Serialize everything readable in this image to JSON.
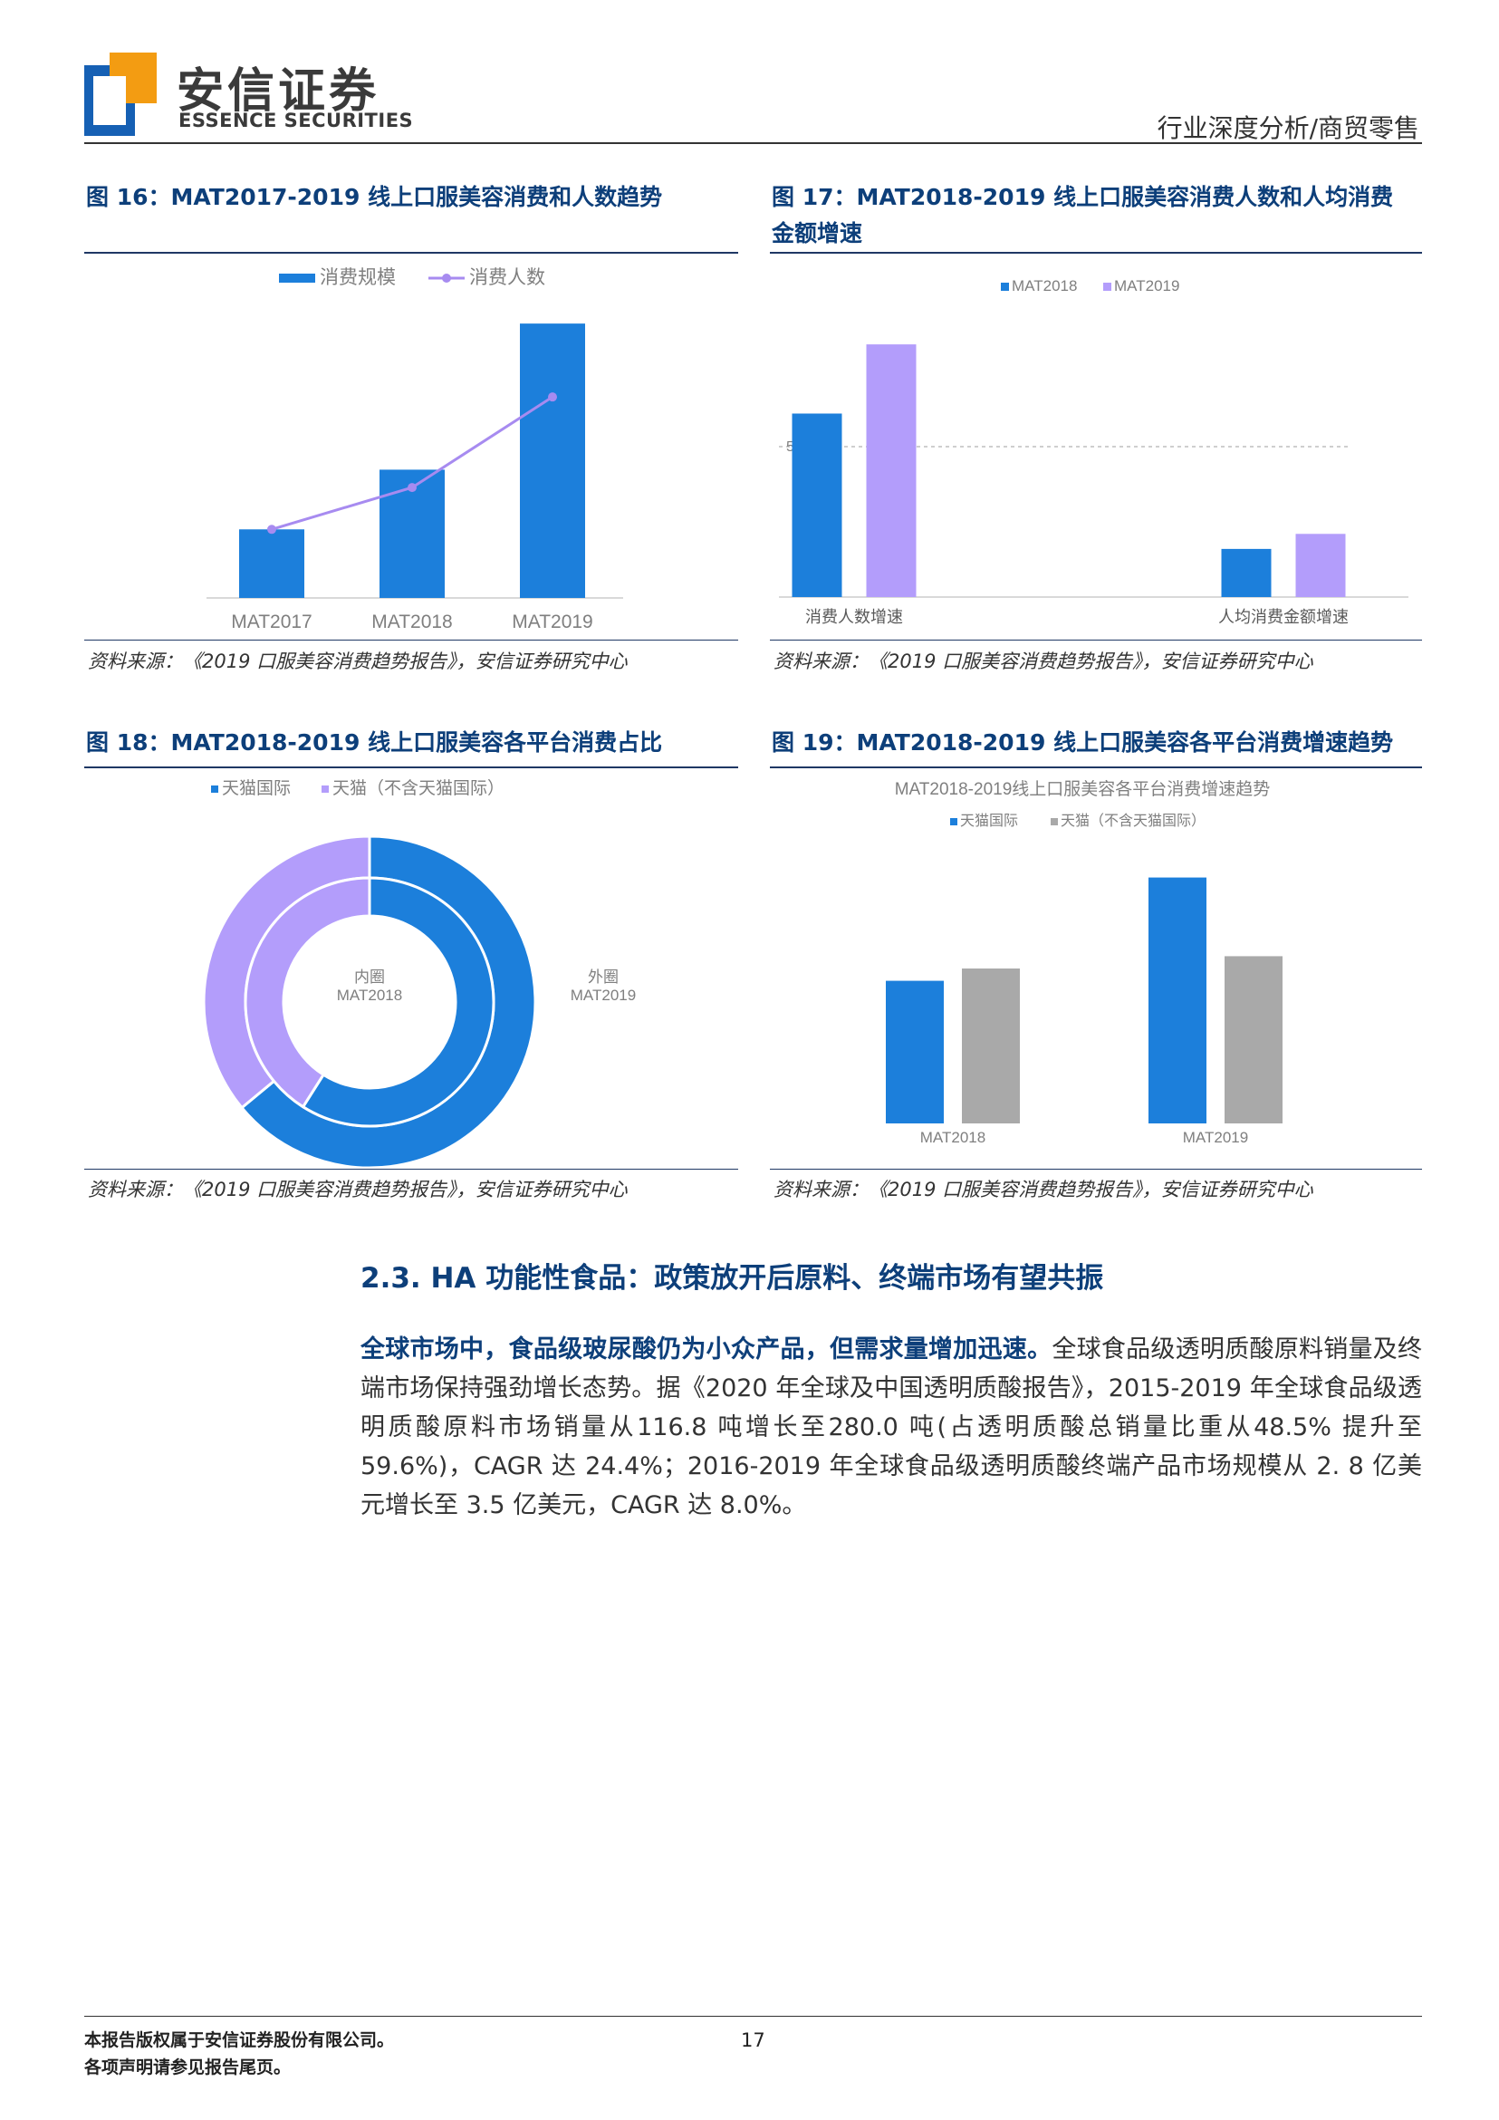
{
  "header": {
    "brand_cn": "安信证券",
    "brand_en": "ESSENCE SECURITIES",
    "category": "行业深度分析/商贸零售"
  },
  "figures": [
    {
      "title": "图 16：MAT2017-2019 线上口服美容消费和人数趋势",
      "source": "资料来源：《2019 口服美容消费趋势报告》，安信证券研究中心"
    },
    {
      "title_line1": "图 17：MAT2018-2019 线上口服美容消费人数和人均消费",
      "title_line2": "金额增速",
      "source": "资料来源：《2019 口服美容消费趋势报告》，安信证券研究中心"
    },
    {
      "title": "图 18：MAT2018-2019 线上口服美容各平台消费占比",
      "source": "资料来源：《2019 口服美容消费趋势报告》，安信证券研究中心"
    },
    {
      "title": "图 19：MAT2018-2019 线上口服美容各平台消费增速趋势",
      "source": "资料来源：《2019 口服美容消费趋势报告》，安信证券研究中心"
    }
  ],
  "chart_data": [
    {
      "type": "bar",
      "categories": [
        "MAT2017",
        "MAT2018",
        "MAT2019"
      ],
      "series": [
        {
          "name": "消费规模",
          "kind": "bar",
          "values": [
            1.0,
            1.87,
            4.0
          ],
          "color": "#1c7fdb"
        },
        {
          "name": "消费人数",
          "kind": "line",
          "values": [
            1.0,
            1.61,
            2.93
          ],
          "color": "#a78bf0"
        }
      ],
      "ylim": [
        0,
        4.2
      ],
      "grid": false,
      "legend": "top"
    },
    {
      "type": "bar",
      "categories": [
        "消费人数增速",
        "人均消费金额增速"
      ],
      "series": [
        {
          "name": "MAT2018",
          "values": [
            61,
            16
          ],
          "color": "#1c7fdb"
        },
        {
          "name": "MAT2019",
          "values": [
            84,
            21
          ],
          "color": "#b39dfb"
        }
      ],
      "ylim": [
        0,
        100
      ],
      "reference_line": {
        "value": 50,
        "label": "50%"
      },
      "legend": "top"
    },
    {
      "type": "pie",
      "subtype": "donut",
      "legend_entries": [
        "天猫国际",
        "天猫（不含天猫国际）"
      ],
      "colors": [
        "#1c7fdb",
        "#b39dfb"
      ],
      "inner_ring": {
        "label_top": "内圈",
        "label_bottom": "MAT2018",
        "values": [
          59,
          41
        ]
      },
      "outer_ring": {
        "label_top": "外圈",
        "label_bottom": "MAT2019",
        "values": [
          64,
          36
        ]
      }
    },
    {
      "type": "bar",
      "title": "MAT2018-2019线上口服美容各平台消费增速趋势",
      "categories": [
        "MAT2018",
        "MAT2019"
      ],
      "series": [
        {
          "name": "天猫国际",
          "values": [
            58,
            100
          ],
          "color": "#1c7fdb"
        },
        {
          "name": "天猫（不含天猫国际）",
          "values": [
            63,
            68
          ],
          "color": "#a9a9a9"
        }
      ],
      "ylim": [
        0,
        105
      ],
      "legend": "top"
    }
  ],
  "section": {
    "heading": "2.3. HA 功能性食品：政策放开后原料、终端市场有望共振",
    "lead": "全球市场中，食品级玻尿酸仍为小众产品，但需求量增加迅速。",
    "body": "全球食品级透明质酸原料销量及终端市场保持强劲增长态势。据《2020 年全球及中国透明质酸报告》，2015-2019 年全球食品级透明质酸原料市场销量从116.8 吨增长至280.0 吨(占透明质酸总销量比重从48.5% 提升至 59.6%)，CAGR 达 24.4%；2016-2019 年全球食品级透明质酸终端产品市场规模从 2. 8 亿美元增长至 3.5 亿美元，CAGR 达 8.0%。"
  },
  "footer": {
    "line1": "本报告版权属于安信证券股份有限公司。",
    "line2": "各项声明请参见报告尾页。",
    "page": "17"
  }
}
